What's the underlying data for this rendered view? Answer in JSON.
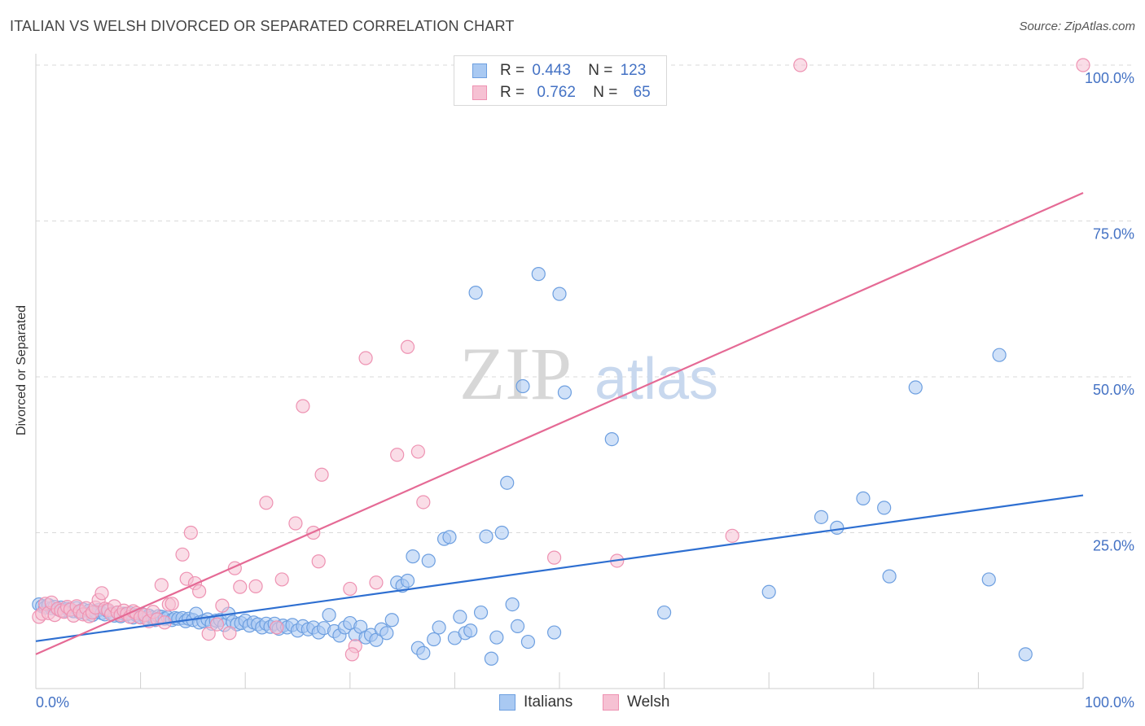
{
  "title": "ITALIAN VS WELSH DIVORCED OR SEPARATED CORRELATION CHART",
  "source": "Source: ZipAtlas.com",
  "watermark": {
    "zip": "ZIP",
    "atlas": "atlas"
  },
  "legend_top": [
    {
      "r_label": "R =",
      "r_value": "0.443",
      "n_label": "N =",
      "n_value": "123"
    },
    {
      "r_label": "R =",
      "r_value": "0.762",
      "n_label": "N =",
      "n_value": "65"
    }
  ],
  "colors": {
    "italians_fill": "#a9c9f2",
    "italians_stroke": "#6d9fe0",
    "italians_line": "#2e6fd1",
    "welsh_fill": "#f6c1d3",
    "welsh_stroke": "#ee92b2",
    "welsh_line": "#e56a95",
    "tick_label": "#4472c4"
  },
  "chart_data": {
    "type": "scatter",
    "title": "ITALIAN VS WELSH DIVORCED OR SEPARATED CORRELATION CHART",
    "xlabel": "",
    "ylabel": "Divorced or Separated",
    "xlim": [
      0,
      100
    ],
    "ylim": [
      0,
      100
    ],
    "x_tick_labels": [
      "0.0%",
      "100.0%"
    ],
    "y_tick_labels": [
      "100.0%",
      "75.0%",
      "50.0%",
      "25.0%"
    ],
    "y_ticks": [
      100,
      75,
      50,
      25
    ],
    "grid": true,
    "legend": [
      "Italians",
      "Welsh"
    ],
    "series": [
      {
        "name": "Italians",
        "r": 0.443,
        "n": 123,
        "trend": {
          "x": [
            0,
            100
          ],
          "y": [
            7.6,
            31.0
          ]
        },
        "points": [
          [
            0.3,
            13.5
          ],
          [
            0.6,
            13.2
          ],
          [
            0.9,
            13.0
          ],
          [
            1.2,
            13.4
          ],
          [
            1.5,
            12.9
          ],
          [
            1.8,
            13.1
          ],
          [
            2.1,
            12.7
          ],
          [
            2.4,
            13.0
          ],
          [
            2.7,
            12.5
          ],
          [
            3.0,
            12.8
          ],
          [
            3.3,
            12.6
          ],
          [
            3.6,
            12.4
          ],
          [
            3.9,
            12.9
          ],
          [
            4.2,
            12.2
          ],
          [
            4.5,
            12.7
          ],
          [
            4.8,
            12.0
          ],
          [
            5.1,
            12.5
          ],
          [
            5.4,
            11.8
          ],
          [
            5.7,
            12.3
          ],
          [
            6.0,
            12.6
          ],
          [
            6.3,
            12.1
          ],
          [
            6.6,
            11.9
          ],
          [
            6.9,
            12.4
          ],
          [
            7.2,
            12.0
          ],
          [
            7.5,
            11.7
          ],
          [
            7.8,
            12.2
          ],
          [
            8.1,
            11.6
          ],
          [
            8.4,
            12.0
          ],
          [
            8.7,
            11.9
          ],
          [
            9.0,
            12.1
          ],
          [
            9.3,
            11.4
          ],
          [
            9.6,
            11.8
          ],
          [
            9.9,
            11.5
          ],
          [
            10.2,
            11.9
          ],
          [
            10.5,
            11.3
          ],
          [
            10.8,
            11.7
          ],
          [
            11.1,
            11.4
          ],
          [
            11.4,
            11.0
          ],
          [
            11.7,
            11.6
          ],
          [
            12.0,
            11.5
          ],
          [
            12.3,
            11.2
          ],
          [
            12.6,
            11.4
          ],
          [
            13.0,
            11.0
          ],
          [
            13.3,
            11.3
          ],
          [
            13.6,
            11.2
          ],
          [
            14.0,
            11.3
          ],
          [
            14.3,
            10.8
          ],
          [
            14.6,
            11.2
          ],
          [
            15.0,
            11.0
          ],
          [
            15.3,
            12.0
          ],
          [
            15.6,
            10.6
          ],
          [
            16.0,
            10.8
          ],
          [
            16.4,
            11.1
          ],
          [
            16.8,
            10.4
          ],
          [
            17.2,
            10.9
          ],
          [
            17.6,
            11.0
          ],
          [
            18.0,
            10.2
          ],
          [
            18.4,
            12.0
          ],
          [
            18.8,
            10.7
          ],
          [
            19.2,
            10.3
          ],
          [
            19.6,
            10.5
          ],
          [
            20.0,
            10.9
          ],
          [
            20.4,
            10.1
          ],
          [
            20.8,
            10.6
          ],
          [
            21.2,
            10.3
          ],
          [
            21.6,
            9.8
          ],
          [
            22.0,
            10.4
          ],
          [
            22.4,
            9.9
          ],
          [
            22.8,
            10.4
          ],
          [
            23.2,
            9.6
          ],
          [
            23.6,
            10.1
          ],
          [
            24.0,
            9.8
          ],
          [
            24.5,
            10.2
          ],
          [
            25.0,
            9.3
          ],
          [
            25.5,
            10.0
          ],
          [
            26.0,
            9.5
          ],
          [
            26.5,
            9.8
          ],
          [
            27.0,
            9.0
          ],
          [
            27.5,
            9.7
          ],
          [
            28.0,
            11.8
          ],
          [
            28.5,
            9.2
          ],
          [
            29.0,
            8.5
          ],
          [
            29.5,
            9.8
          ],
          [
            30.0,
            10.5
          ],
          [
            30.5,
            8.7
          ],
          [
            31.0,
            9.9
          ],
          [
            31.5,
            8.2
          ],
          [
            32.0,
            8.6
          ],
          [
            32.5,
            7.8
          ],
          [
            33.0,
            9.5
          ],
          [
            33.5,
            8.9
          ],
          [
            34.0,
            11.0
          ],
          [
            34.5,
            17.0
          ],
          [
            35.0,
            16.5
          ],
          [
            35.5,
            17.3
          ],
          [
            36.0,
            21.2
          ],
          [
            36.5,
            6.5
          ],
          [
            37.0,
            5.7
          ],
          [
            37.5,
            20.5
          ],
          [
            38.0,
            7.9
          ],
          [
            38.5,
            9.8
          ],
          [
            39.0,
            24.0
          ],
          [
            39.5,
            24.3
          ],
          [
            40.0,
            8.1
          ],
          [
            40.5,
            11.5
          ],
          [
            41.0,
            8.9
          ],
          [
            41.5,
            9.3
          ],
          [
            42.0,
            63.5
          ],
          [
            42.5,
            12.2
          ],
          [
            43.0,
            24.4
          ],
          [
            43.5,
            4.8
          ],
          [
            44.0,
            8.2
          ],
          [
            44.5,
            25.0
          ],
          [
            45.0,
            33.0
          ],
          [
            45.5,
            13.5
          ],
          [
            46.0,
            10.0
          ],
          [
            46.5,
            48.5
          ],
          [
            47.0,
            7.5
          ],
          [
            48.0,
            66.5
          ],
          [
            49.5,
            9.0
          ],
          [
            50.0,
            63.3
          ],
          [
            50.5,
            47.5
          ],
          [
            55.0,
            40.0
          ],
          [
            60.0,
            12.2
          ],
          [
            70.0,
            15.5
          ],
          [
            75.0,
            27.5
          ],
          [
            76.5,
            25.8
          ],
          [
            79.0,
            30.5
          ],
          [
            81.0,
            29.0
          ],
          [
            81.5,
            18.0
          ],
          [
            84.0,
            48.3
          ],
          [
            91.0,
            17.5
          ],
          [
            92.0,
            53.5
          ],
          [
            94.5,
            5.5
          ]
        ]
      },
      {
        "name": "Welsh",
        "r": 0.762,
        "n": 65,
        "trend": {
          "x": [
            0,
            100
          ],
          "y": [
            5.5,
            79.5
          ]
        },
        "points": [
          [
            0.3,
            11.5
          ],
          [
            0.6,
            12.0
          ],
          [
            0.9,
            13.6
          ],
          [
            1.2,
            12.1
          ],
          [
            1.5,
            13.8
          ],
          [
            1.8,
            11.8
          ],
          [
            2.1,
            12.8
          ],
          [
            2.4,
            12.5
          ],
          [
            2.7,
            12.3
          ],
          [
            3.0,
            13.1
          ],
          [
            3.3,
            12.7
          ],
          [
            3.6,
            11.7
          ],
          [
            3.9,
            13.2
          ],
          [
            4.2,
            12.4
          ],
          [
            4.5,
            11.9
          ],
          [
            4.8,
            12.9
          ],
          [
            5.1,
            11.6
          ],
          [
            5.4,
            12.2
          ],
          [
            5.7,
            13.0
          ],
          [
            6.0,
            14.2
          ],
          [
            6.3,
            15.3
          ],
          [
            6.6,
            12.8
          ],
          [
            6.9,
            12.6
          ],
          [
            7.2,
            11.9
          ],
          [
            7.5,
            13.2
          ],
          [
            7.8,
            12.2
          ],
          [
            8.1,
            11.8
          ],
          [
            8.4,
            12.5
          ],
          [
            8.7,
            12.0
          ],
          [
            9.0,
            11.5
          ],
          [
            9.3,
            12.4
          ],
          [
            9.6,
            12.1
          ],
          [
            10.0,
            11.4
          ],
          [
            10.4,
            11.8
          ],
          [
            10.8,
            10.8
          ],
          [
            11.2,
            12.3
          ],
          [
            11.6,
            11.1
          ],
          [
            12.0,
            16.6
          ],
          [
            12.3,
            10.6
          ],
          [
            12.7,
            13.5
          ],
          [
            13.0,
            13.6
          ],
          [
            14.0,
            21.5
          ],
          [
            14.4,
            17.6
          ],
          [
            14.8,
            25.0
          ],
          [
            15.2,
            16.9
          ],
          [
            15.6,
            15.6
          ],
          [
            16.5,
            8.8
          ],
          [
            17.3,
            10.3
          ],
          [
            17.8,
            13.3
          ],
          [
            18.5,
            8.9
          ],
          [
            19.0,
            19.3
          ],
          [
            19.5,
            16.3
          ],
          [
            21.0,
            16.4
          ],
          [
            22.0,
            29.8
          ],
          [
            23.0,
            9.8
          ],
          [
            23.5,
            17.5
          ],
          [
            24.8,
            26.5
          ],
          [
            25.5,
            45.3
          ],
          [
            26.5,
            25.0
          ],
          [
            27.0,
            20.4
          ],
          [
            27.3,
            34.3
          ],
          [
            30.0,
            16.0
          ],
          [
            30.5,
            6.8
          ],
          [
            31.5,
            53.0
          ],
          [
            32.5,
            17.0
          ],
          [
            34.5,
            37.5
          ],
          [
            35.5,
            54.8
          ],
          [
            36.5,
            38.0
          ],
          [
            37.0,
            29.9
          ],
          [
            49.5,
            21.0
          ],
          [
            55.5,
            20.5
          ],
          [
            66.5,
            24.5
          ],
          [
            73.0,
            100.0
          ],
          [
            100.0,
            100.0
          ],
          [
            30.2,
            5.5
          ]
        ]
      }
    ]
  },
  "legend_bottom": [
    "Italians",
    "Welsh"
  ]
}
